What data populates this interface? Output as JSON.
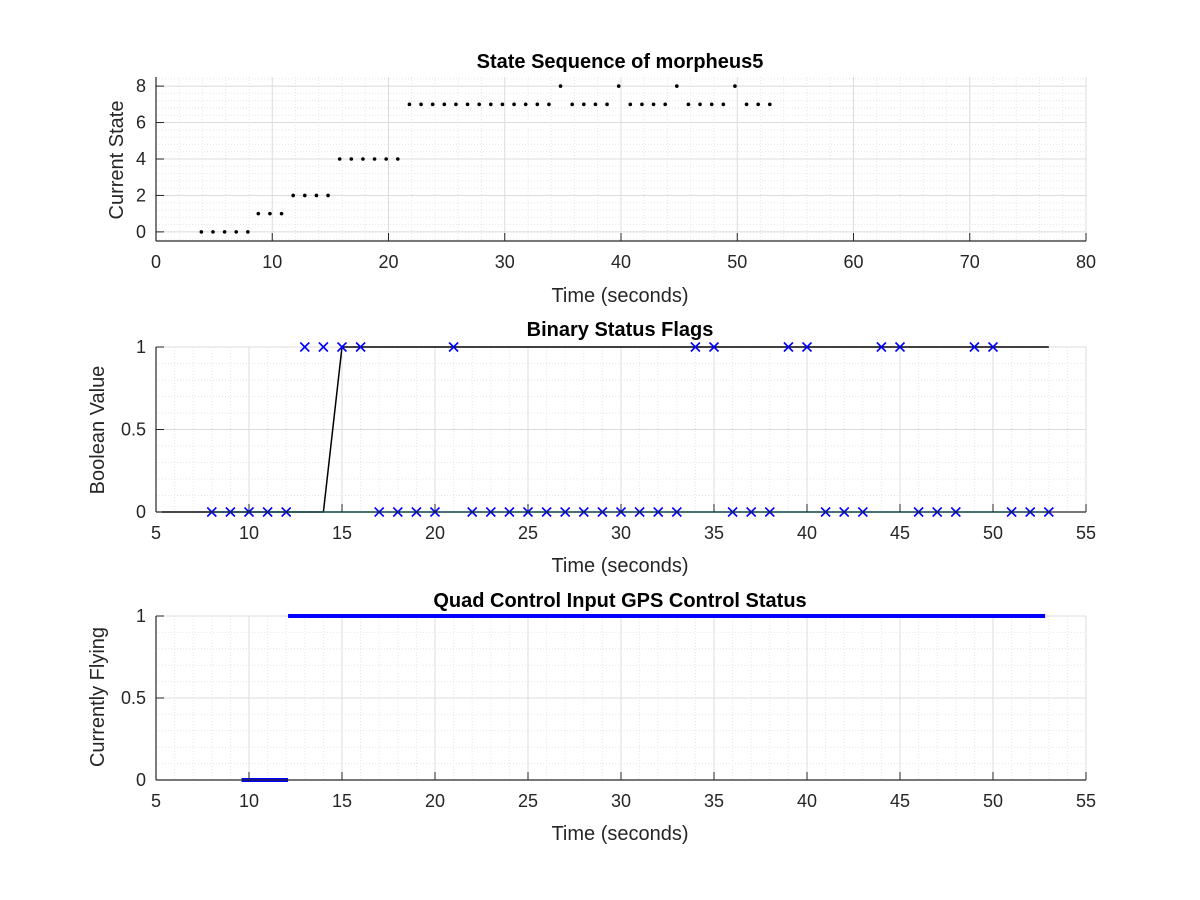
{
  "chart_data": [
    {
      "type": "scatter",
      "title": "State Sequence of morpheus5",
      "xlabel": "Time (seconds)",
      "ylabel": "Current State",
      "xlim": [
        0,
        80
      ],
      "ylim": [
        -0.5,
        8.5
      ],
      "xticks": [
        0,
        10,
        20,
        30,
        40,
        50,
        60,
        70,
        80
      ],
      "yticks": [
        0,
        2,
        4,
        6,
        8
      ],
      "grid": true,
      "minor_grid": true,
      "series": [
        {
          "color": "#000000",
          "marker": "dot",
          "x": [
            3.9,
            4.9,
            5.9,
            6.9,
            7.9,
            8.8,
            9.8,
            10.8,
            11.8,
            12.8,
            13.8,
            14.8,
            15.8,
            16.8,
            17.8,
            18.8,
            19.8,
            20.8,
            21.8,
            22.8,
            23.8,
            24.8,
            25.8,
            26.8,
            27.8,
            28.8,
            29.8,
            30.8,
            31.8,
            32.8,
            33.8,
            34.8,
            35.8,
            36.8,
            37.8,
            38.8,
            39.8,
            40.8,
            41.8,
            42.8,
            43.8,
            44.8,
            45.8,
            46.8,
            47.8,
            48.8,
            49.8,
            50.8,
            51.8,
            52.8
          ],
          "y": [
            0,
            0,
            0,
            0,
            0,
            1,
            1,
            1,
            2,
            2,
            2,
            2,
            4,
            4,
            4,
            4,
            4,
            4,
            7,
            7,
            7,
            7,
            7,
            7,
            7,
            7,
            7,
            7,
            7,
            7,
            7,
            8,
            7,
            7,
            7,
            7,
            8,
            7,
            7,
            7,
            7,
            8,
            7,
            7,
            7,
            7,
            8,
            7,
            7,
            7
          ]
        }
      ]
    },
    {
      "type": "line",
      "title": "Binary Status Flags",
      "xlabel": "Time (seconds)",
      "ylabel": "Boolean Value",
      "xlim": [
        5,
        55
      ],
      "ylim": [
        0,
        1
      ],
      "xticks": [
        5,
        10,
        15,
        20,
        25,
        30,
        35,
        40,
        45,
        50,
        55
      ],
      "yticks": [
        0,
        0.5,
        1
      ],
      "grid": true,
      "minor_grid": true,
      "series": [
        {
          "color": "#000000",
          "style": "line",
          "x": [
            5.3,
            14,
            15,
            53
          ],
          "y": [
            0,
            0,
            1,
            1
          ]
        },
        {
          "color": "#00e5e5",
          "style": "line",
          "x": [
            8,
            53
          ],
          "y": [
            0,
            0
          ]
        },
        {
          "color": "#0000ff",
          "style": "x-marker",
          "x": [
            8,
            9,
            10,
            11,
            12,
            13,
            14,
            15,
            16,
            17,
            18,
            19,
            20,
            21,
            22,
            23,
            24,
            25,
            26,
            27,
            28,
            29,
            30,
            31,
            32,
            33,
            34,
            35,
            36,
            37,
            38,
            39,
            40,
            41,
            42,
            43,
            44,
            45,
            46,
            47,
            48,
            49,
            50,
            51,
            52,
            53
          ],
          "y": [
            0,
            0,
            0,
            0,
            0,
            1,
            1,
            1,
            1,
            0,
            0,
            0,
            0,
            1,
            0,
            0,
            0,
            0,
            0,
            0,
            0,
            0,
            0,
            0,
            0,
            0,
            1,
            1,
            0,
            0,
            0,
            1,
            1,
            0,
            0,
            0,
            1,
            1,
            0,
            0,
            0,
            1,
            1,
            0,
            0,
            0
          ]
        }
      ]
    },
    {
      "type": "line",
      "title": "Quad Control Input GPS Control Status",
      "xlabel": "Time (seconds)",
      "ylabel": "Currently Flying",
      "xlim": [
        5,
        55
      ],
      "ylim": [
        0,
        1
      ],
      "xticks": [
        5,
        10,
        15,
        20,
        25,
        30,
        35,
        40,
        45,
        50,
        55
      ],
      "yticks": [
        0,
        0.5,
        1
      ],
      "grid": true,
      "minor_grid": true,
      "series": [
        {
          "color": "#0000ff",
          "style": "thick-line",
          "segments": [
            {
              "x": [
                9.6,
                12.1
              ],
              "y": [
                0,
                0
              ]
            },
            {
              "x": [
                12.1,
                52.8
              ],
              "y": [
                1,
                1
              ]
            }
          ]
        }
      ]
    }
  ]
}
